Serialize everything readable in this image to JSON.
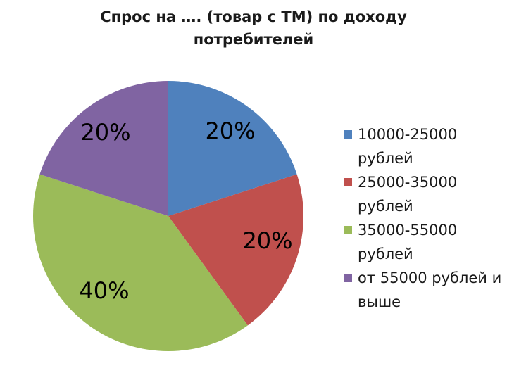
{
  "chart_data": {
    "type": "pie",
    "title": "Спрос на …. (товар с ТМ) по доходу потребителей",
    "categories": [
      "10000-25000 рублей",
      "25000-35000 рублей",
      "35000-55000 рублей",
      "от 55000 рублей и выше"
    ],
    "values": [
      20,
      20,
      40,
      20
    ],
    "data_labels": [
      "20%",
      "20%",
      "40%",
      "20%"
    ],
    "colors": [
      "#4f81bd",
      "#c0504d",
      "#9bbb59",
      "#8064a2"
    ],
    "legend_position": "right"
  }
}
